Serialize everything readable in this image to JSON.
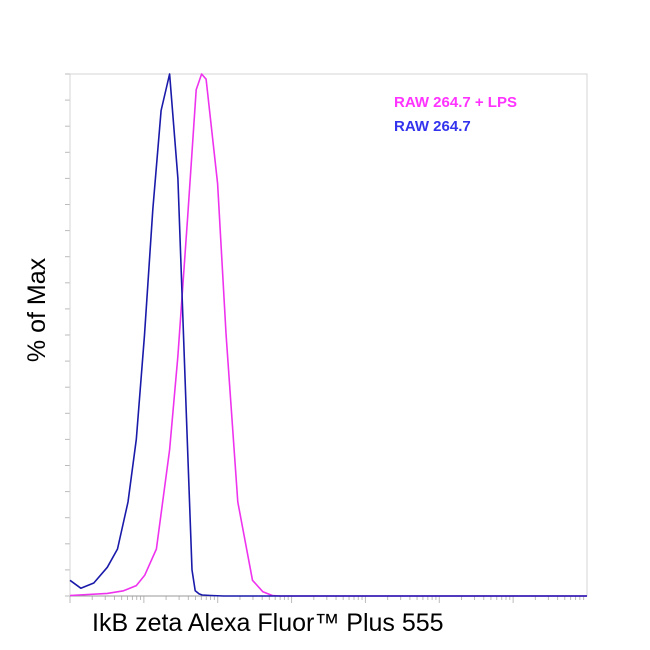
{
  "chart_data": {
    "type": "line",
    "title": "",
    "xlabel": "IkB zeta Alexa Fluor™ Plus 555",
    "ylabel": "% of Max",
    "x_scale": "log",
    "xlim": [
      1,
      10000000
    ],
    "ylim": [
      0,
      100
    ],
    "x_tick_labels_shown": false,
    "y_tick_labels_shown": false,
    "grid": false,
    "legend_placement": "top-right",
    "legend": [
      {
        "label": "RAW 264.7 + LPS",
        "color": "#ff33ff"
      },
      {
        "label": "RAW 264.7",
        "color": "#3333ee"
      }
    ],
    "series": [
      {
        "name": "RAW 264.7",
        "color": "#1a1aaa",
        "x": [
          1,
          1.4,
          2.1,
          3.2,
          4.4,
          6.1,
          7.9,
          10.2,
          13.2,
          17.1,
          22.3,
          28.9,
          37.6,
          44.9,
          49.6,
          56,
          61.7,
          81,
          120,
          300,
          1000,
          10000000
        ],
        "y": [
          3,
          1.5,
          2.5,
          5.5,
          9,
          18,
          30,
          50,
          74,
          93,
          100,
          80,
          35,
          5,
          1,
          0.4,
          0.2,
          0.1,
          0,
          0,
          0,
          0
        ]
      },
      {
        "name": "RAW 264.7 + LPS",
        "color": "#ee33ee",
        "x": [
          1,
          3.2,
          5.3,
          7.9,
          10.3,
          14.8,
          22.3,
          28.9,
          39.3,
          51.1,
          60.6,
          69.7,
          99.7,
          130,
          187,
          296,
          409,
          549,
          700,
          1000,
          10000000
        ],
        "y": [
          0.1,
          0.5,
          1,
          2,
          4,
          9,
          28,
          46,
          73,
          97,
          100,
          99,
          79,
          50,
          18,
          3,
          0.8,
          0.1,
          0,
          0,
          0
        ]
      }
    ]
  }
}
